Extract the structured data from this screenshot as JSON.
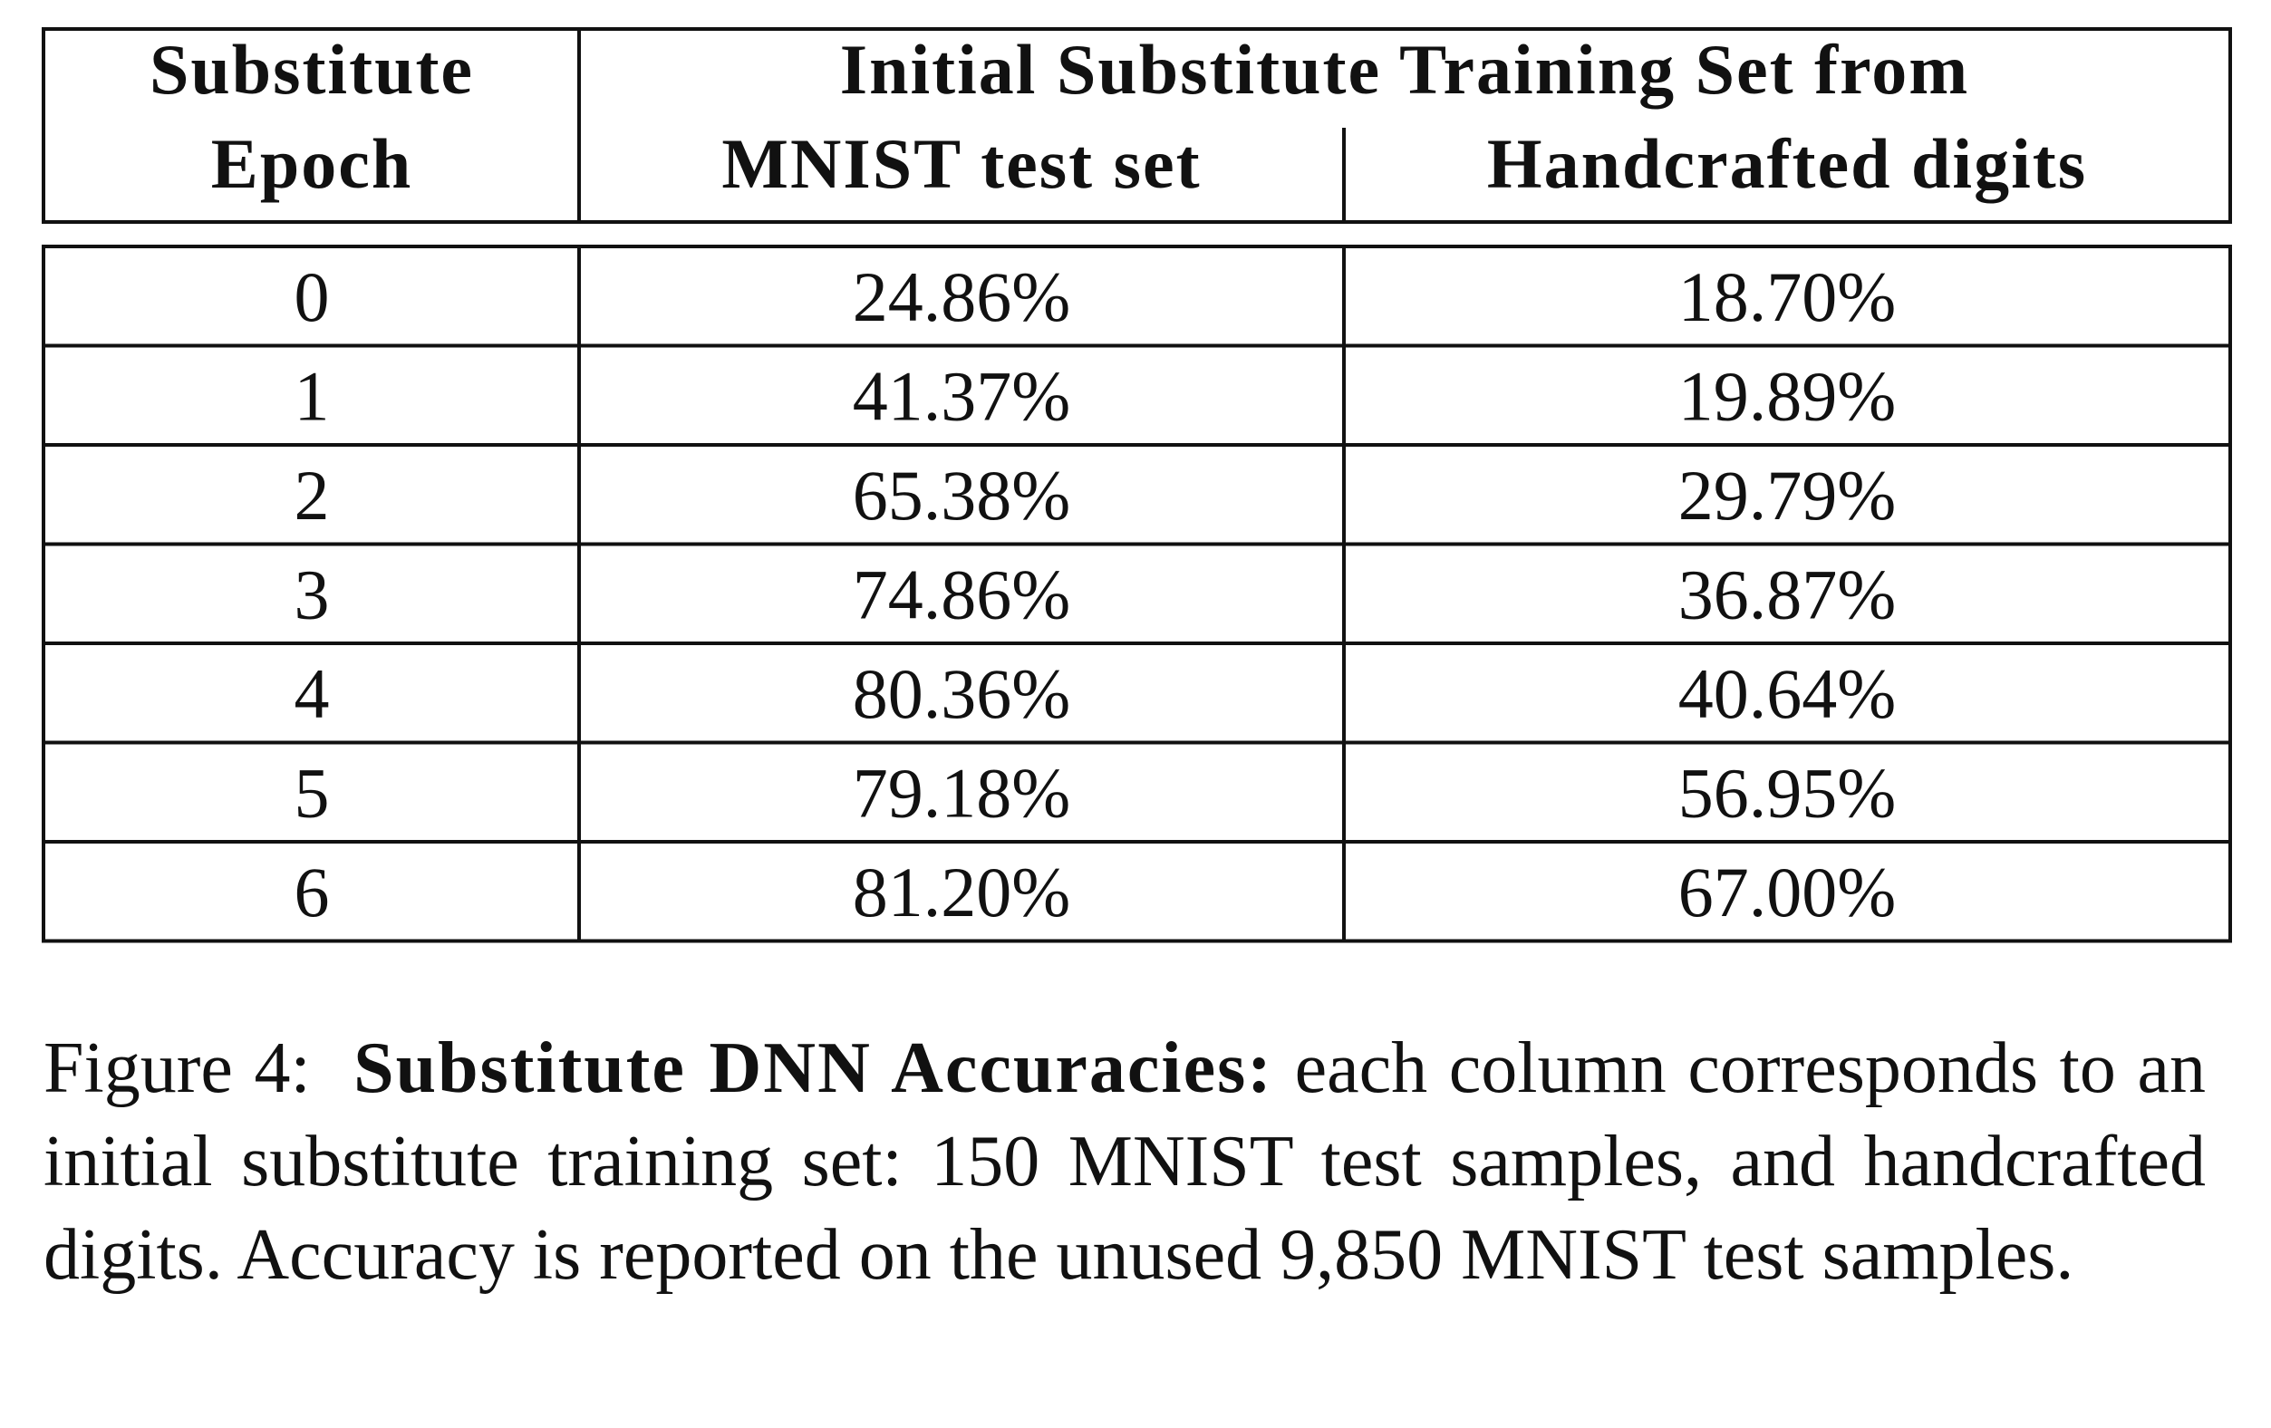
{
  "table": {
    "header": {
      "epoch": [
        "Substitute",
        "Epoch"
      ],
      "group": "Initial Substitute Training Set from",
      "columns": [
        "MNIST test set",
        "Handcrafted digits"
      ]
    },
    "rows": [
      [
        "0",
        "24.86%",
        "18.70%"
      ],
      [
        "1",
        "41.37%",
        "19.89%"
      ],
      [
        "2",
        "65.38%",
        "29.79%"
      ],
      [
        "3",
        "74.86%",
        "36.87%"
      ],
      [
        "4",
        "80.36%",
        "40.64%"
      ],
      [
        "5",
        "79.18%",
        "56.95%"
      ],
      [
        "6",
        "81.20%",
        "67.00%"
      ]
    ]
  },
  "caption": {
    "label": "Figure 4:",
    "title": "Substitute DNN Accuracies:",
    "text": "each column corresponds to an initial substitute training set: 150 MNIST test samples, and handcrafted digits. Accuracy is reported on the unused 9,850 MNIST test samples."
  }
}
